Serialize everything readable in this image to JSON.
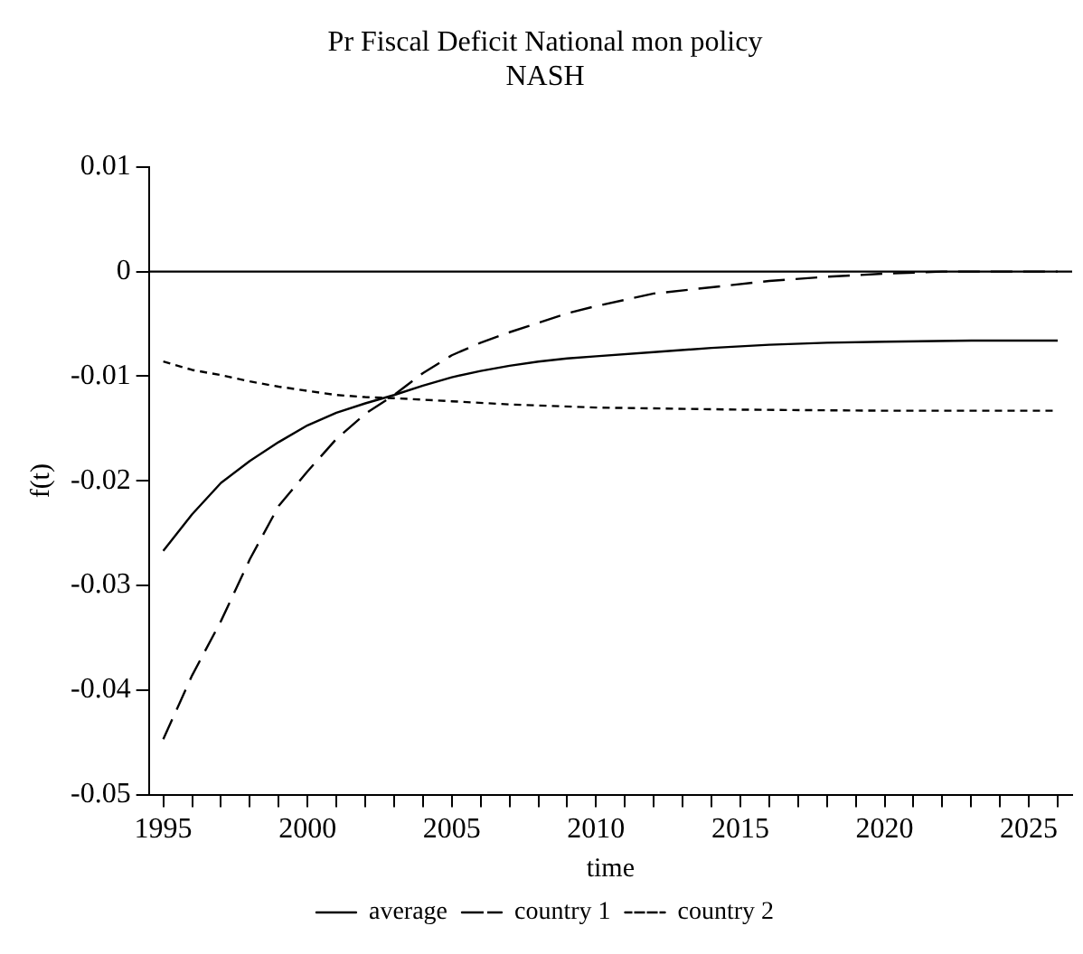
{
  "chart_data": {
    "type": "line",
    "title": "Pr Fiscal Deficit National mon policy",
    "subtitle": "NASH",
    "xlabel": "time",
    "ylabel": "f(t)",
    "xlim": [
      1994.5,
      2026.5
    ],
    "ylim": [
      -0.05,
      0.01
    ],
    "xticks": [
      1995,
      {
        "value": 1996,
        "label": null
      },
      {
        "value": 1997,
        "label": null
      },
      {
        "value": 1998,
        "label": null
      },
      {
        "value": 1999,
        "label": null
      },
      2000,
      {
        "value": 2001,
        "label": null
      },
      {
        "value": 2002,
        "label": null
      },
      {
        "value": 2003,
        "label": null
      },
      {
        "value": 2004,
        "label": null
      },
      2005,
      {
        "value": 2006,
        "label": null
      },
      {
        "value": 2007,
        "label": null
      },
      {
        "value": 2008,
        "label": null
      },
      {
        "value": 2009,
        "label": null
      },
      2010,
      {
        "value": 2011,
        "label": null
      },
      {
        "value": 2012,
        "label": null
      },
      {
        "value": 2013,
        "label": null
      },
      {
        "value": 2014,
        "label": null
      },
      2015,
      {
        "value": 2016,
        "label": null
      },
      {
        "value": 2017,
        "label": null
      },
      {
        "value": 2018,
        "label": null
      },
      {
        "value": 2019,
        "label": null
      },
      2020,
      {
        "value": 2021,
        "label": null
      },
      {
        "value": 2022,
        "label": null
      },
      {
        "value": 2023,
        "label": null
      },
      {
        "value": 2024,
        "label": null
      },
      2025,
      {
        "value": 2026,
        "label": null
      }
    ],
    "yticks": [
      0.01,
      0,
      -0.01,
      -0.02,
      -0.03,
      -0.04,
      -0.05
    ],
    "grid": false,
    "legend": "bottom",
    "marker": "none",
    "ref_lines": [
      {
        "axis": "y",
        "value": 0,
        "color": "#000000",
        "line_style": "solid"
      }
    ],
    "series": [
      {
        "name": "average",
        "color": "#000000",
        "line_style": "solid",
        "x": [
          1995,
          1996,
          1997,
          1998,
          1999,
          2000,
          2001,
          2002,
          2003,
          2004,
          2005,
          2006,
          2007,
          2008,
          2009,
          2010,
          2012,
          2014,
          2016,
          2018,
          2020,
          2023,
          2026
        ],
        "values": [
          -0.0267,
          -0.0232,
          -0.0202,
          -0.0181,
          -0.0163,
          -0.0147,
          -0.0135,
          -0.0126,
          -0.0118,
          -0.0109,
          -0.0101,
          -0.0095,
          -0.009,
          -0.0086,
          -0.0083,
          -0.0081,
          -0.0077,
          -0.0073,
          -0.007,
          -0.0068,
          -0.0067,
          -0.0066,
          -0.0066
        ]
      },
      {
        "name": "country 1",
        "color": "#000000",
        "line_style": "dashed",
        "x": [
          1995,
          1996,
          1997,
          1998,
          1999,
          2000,
          2001,
          2002,
          2003,
          2004,
          2005,
          2006,
          2007,
          2008,
          2009,
          2010,
          2011,
          2012,
          2014,
          2016,
          2018,
          2020,
          2022,
          2026
        ],
        "values": [
          -0.0447,
          -0.0386,
          -0.0334,
          -0.0275,
          -0.0224,
          -0.0191,
          -0.016,
          -0.0136,
          -0.0118,
          -0.0097,
          -0.008,
          -0.0068,
          -0.0058,
          -0.0049,
          -0.004,
          -0.0033,
          -0.0027,
          -0.0021,
          -0.0015,
          -0.0009,
          -0.0005,
          -0.0002,
          0,
          0
        ]
      },
      {
        "name": "country 2",
        "color": "#000000",
        "line_style": "dotted",
        "x": [
          1995,
          1996,
          1997,
          1998,
          1999,
          2000,
          2001,
          2002,
          2003,
          2005,
          2007,
          2010,
          2015,
          2020,
          2026
        ],
        "values": [
          -0.0086,
          -0.0094,
          -0.0099,
          -0.0105,
          -0.011,
          -0.0114,
          -0.0118,
          -0.012,
          -0.0121,
          -0.0124,
          -0.0127,
          -0.013,
          -0.0132,
          -0.0133,
          -0.0133
        ]
      }
    ]
  }
}
